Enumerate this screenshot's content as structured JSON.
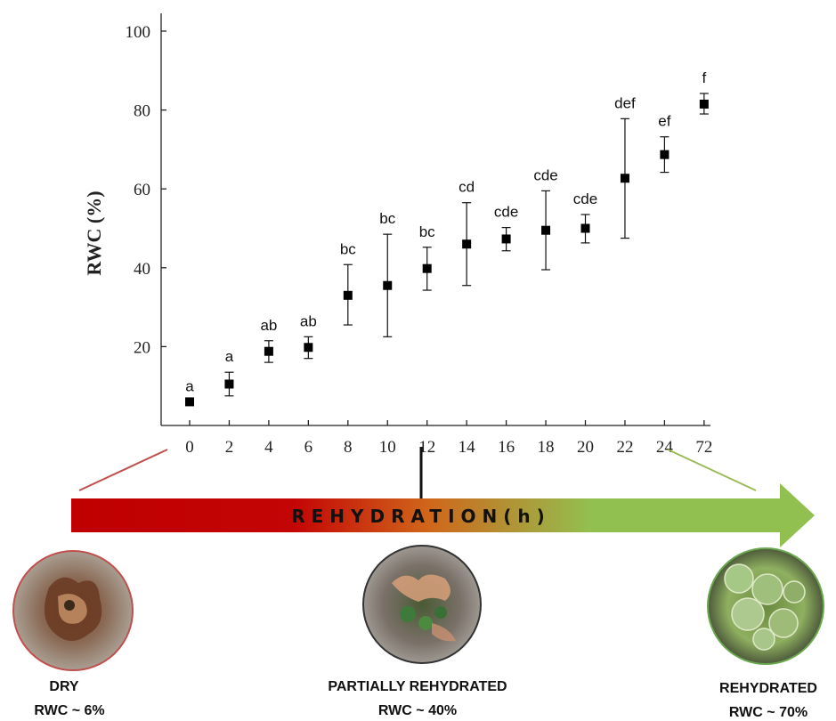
{
  "chart_data": {
    "type": "scatter",
    "ylabel": "RWC (%)",
    "xlabel": "",
    "ylim": [
      0,
      100
    ],
    "yticks": [
      20,
      40,
      60,
      80,
      100
    ],
    "x_categories": [
      "0",
      "2",
      "4",
      "6",
      "8",
      "10",
      "12",
      "14",
      "16",
      "18",
      "20",
      "22",
      "24",
      "72"
    ],
    "values": [
      6,
      10.5,
      18.8,
      19.8,
      33,
      35.5,
      39.8,
      46,
      47.3,
      49.5,
      50,
      62.7,
      68.7,
      81.5
    ],
    "error_upper": [
      6,
      13.5,
      21.5,
      22.5,
      40.8,
      48.5,
      45.2,
      56.5,
      50.2,
      59.5,
      53.5,
      77.8,
      73.2,
      84.2
    ],
    "error_lower": [
      6,
      7.5,
      16,
      17,
      25.5,
      22.5,
      34.3,
      35.5,
      44.3,
      39.5,
      46.3,
      47.5,
      64.2,
      79
    ],
    "significance_letters": [
      "a",
      "a",
      "ab",
      "ab",
      "bc",
      "bc",
      "bc",
      "cd",
      "cde",
      "cde",
      "cde",
      "def",
      "ef",
      "f"
    ],
    "grid": false,
    "legend": "none"
  },
  "arrow": {
    "label": "REHYDRATION(h)",
    "color_start": "#c00000",
    "color_mid": "#d0661a",
    "color_end": "#92c050"
  },
  "connector_colors": {
    "dry": "#c0504d",
    "rehydrated": "#9bbb59"
  },
  "states": [
    {
      "title": "DRY",
      "rwc": "RWC ~ 6%",
      "ring_color": "#c0504d"
    },
    {
      "title": "PARTIALLY REHYDRATED",
      "rwc": "RWC ~ 40%",
      "ring_color": "#333333"
    },
    {
      "title": "REHYDRATED",
      "rwc": "RWC ~ 70%",
      "ring_color": "#6aa84f"
    }
  ]
}
